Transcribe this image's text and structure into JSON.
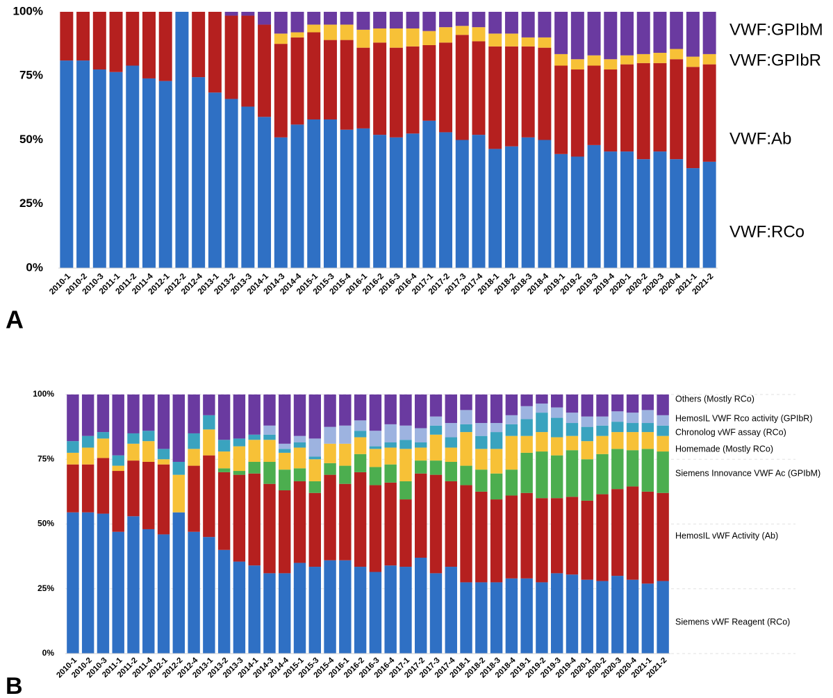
{
  "chart_data": [
    {
      "type": "bar",
      "stacked": true,
      "panel_label": "A",
      "categories": [
        "2010-1",
        "2010-2",
        "2010-3",
        "2011-1",
        "2011-2",
        "2011-4",
        "2012-1",
        "2012-2",
        "2012-4",
        "2013-1",
        "2013-2",
        "2013-3",
        "2014-1",
        "2014-3",
        "2014-4",
        "2015-1",
        "2015-3",
        "2015-4",
        "2016-1",
        "2016-2",
        "2016-3",
        "2016-4",
        "2017-1",
        "2017-2",
        "2017-3",
        "2017-4",
        "2018-1",
        "2018-2",
        "2018-3",
        "2018-4",
        "2019-1",
        "2019-2",
        "2019-3",
        "2019-4",
        "2020-1",
        "2020-2",
        "2020-3",
        "2020-4",
        "2021-1",
        "2021-2"
      ],
      "series": [
        {
          "name": "VWF:RCo",
          "color": "#2f70c4",
          "label_color": "#2f70c4",
          "values": [
            81,
            81,
            77.5,
            76.5,
            79,
            74,
            73,
            100,
            74.5,
            68.5,
            66,
            63,
            59,
            51,
            56,
            58,
            58,
            54,
            54.5,
            52,
            51,
            52.5,
            57.5,
            53,
            50,
            52,
            46.5,
            47.5,
            51,
            50,
            44.5,
            43.5,
            48,
            45.5,
            45.5,
            42.5,
            45.5,
            42.5,
            39,
            41.5
          ]
        },
        {
          "name": "VWF:Ab",
          "color": "#b5201f",
          "label_color": "#b5201f",
          "values": [
            19,
            19,
            22.5,
            23.5,
            21,
            26,
            27,
            0,
            25.5,
            31.5,
            32.5,
            35.5,
            36,
            36.5,
            34,
            34,
            31,
            35,
            31.5,
            36,
            35,
            34,
            29.5,
            35,
            41,
            36.5,
            40,
            39,
            35.5,
            36,
            34.5,
            34,
            31,
            32,
            34,
            37.5,
            34.5,
            39,
            39.5,
            38
          ]
        },
        {
          "name": "VWF:GPIbR",
          "color": "#f7c137",
          "label_color": "#8a6d1e",
          "values": [
            0,
            0,
            0,
            0,
            0,
            0,
            0,
            0,
            0,
            0,
            0,
            0,
            0,
            4,
            2,
            3,
            6,
            6,
            7,
            5.5,
            7.5,
            7,
            5.5,
            6,
            3.5,
            5.5,
            5,
            5,
            3.5,
            4,
            4.5,
            4,
            4,
            4,
            3.5,
            3.5,
            4,
            4,
            4,
            4
          ]
        },
        {
          "name": "VWF:GPIbM",
          "color": "#6a3aa0",
          "label_color": "#6a3aa0",
          "values": [
            0,
            0,
            0,
            0,
            0,
            0,
            0,
            0,
            0,
            0,
            1.5,
            1.5,
            5,
            8.5,
            8,
            5,
            5,
            5,
            7,
            6.5,
            6.5,
            6.5,
            7.5,
            6,
            5.5,
            6,
            8.5,
            8.5,
            10,
            10,
            16.5,
            18.5,
            17,
            18.5,
            17,
            16.5,
            16,
            14.5,
            17.5,
            16.5
          ]
        }
      ],
      "ylim": [
        0,
        100
      ],
      "yticks": [
        {
          "value": 0,
          "label": "0%"
        },
        {
          "value": 25,
          "label": "25%"
        },
        {
          "value": 50,
          "label": "50%"
        },
        {
          "value": 75,
          "label": "75%"
        },
        {
          "value": 100,
          "label": "100%"
        }
      ],
      "grid": false
    },
    {
      "type": "bar",
      "stacked": true,
      "panel_label": "B",
      "categories": [
        "2010-1",
        "2010-2",
        "2010-3",
        "2011-1",
        "2011-2",
        "2011-4",
        "2012-1",
        "2012-2",
        "2012-4",
        "2013-1",
        "2013-2",
        "2013-3",
        "2014-1",
        "2014-3",
        "2014-4",
        "2015-1",
        "2015-3",
        "2015-4",
        "2016-1",
        "2016-2",
        "2016-3",
        "2016-4",
        "2017-1",
        "2017-2",
        "2017-3",
        "2017-4",
        "2018-1",
        "2018-2",
        "2018-3",
        "2018-4",
        "2019-1",
        "2019-2",
        "2019-3",
        "2019-4",
        "2020-1",
        "2020-2",
        "2020-3",
        "2020-4",
        "2021-1",
        "2021-2"
      ],
      "series": [
        {
          "name": "Siemens vWF Reagent (RCo)",
          "color": "#2f70c4",
          "label_color": "#2f70c4",
          "values": [
            54.5,
            54.5,
            54,
            47,
            53,
            48,
            46,
            54.5,
            47,
            45,
            40,
            35.5,
            34,
            31,
            31,
            35,
            33.5,
            36,
            36,
            33.5,
            31.5,
            34,
            33.5,
            37,
            31,
            33.5,
            27.5,
            27.5,
            27.5,
            29,
            29,
            27.5,
            31,
            30.5,
            28.5,
            28,
            30,
            28.5,
            27,
            28
          ]
        },
        {
          "name": "HemosIL vWF Activity (Ab)",
          "color": "#b5201f",
          "label_color": "#b5201f",
          "values": [
            18.5,
            18.5,
            21.5,
            23.5,
            21.5,
            26,
            27,
            0,
            25.5,
            31.5,
            30,
            33.5,
            35.5,
            34.5,
            32,
            31.5,
            28.5,
            33,
            29.5,
            36.5,
            33.5,
            32,
            26,
            32.5,
            38,
            33,
            37.5,
            35,
            32,
            32,
            33,
            32.5,
            29,
            30,
            30.5,
            33.5,
            33.5,
            36,
            35.5,
            34
          ]
        },
        {
          "name": "Siemens Innovance VWF Ac (GPIbM)",
          "color": "#4cae4f",
          "label_color": "#3a9d3a",
          "values": [
            0,
            0,
            0,
            0,
            0,
            0,
            0,
            0,
            0,
            0,
            1.5,
            1.5,
            4.5,
            8.5,
            8,
            5,
            4.5,
            4.5,
            7,
            7,
            7,
            7,
            7,
            5,
            5.5,
            7.5,
            7.5,
            8.5,
            10,
            10,
            15.5,
            18,
            16.5,
            18,
            16,
            15.5,
            15.5,
            14,
            16.5,
            16
          ]
        },
        {
          "name": "Homemade (Mostly RCo)",
          "color": "#f7c137",
          "label_color": "#e8a33a",
          "values": [
            4.5,
            6.5,
            7.5,
            2,
            6.5,
            8,
            2,
            14.5,
            6.5,
            10,
            6.5,
            9.5,
            8.5,
            8.5,
            6.5,
            8,
            8.5,
            7.5,
            8.5,
            6.5,
            7,
            6.5,
            12.5,
            5,
            10,
            5.5,
            13,
            8,
            9.5,
            13,
            6.5,
            7.5,
            7,
            5.5,
            7,
            7,
            6.5,
            7,
            6.5,
            6
          ]
        },
        {
          "name": "Chronolog vWF assay (RCo)",
          "color": "#3aa3bf",
          "label_color": "#3aa3bf",
          "values": [
            4.5,
            4.5,
            2.5,
            4,
            4,
            4,
            4,
            5,
            6,
            5.5,
            4.5,
            3,
            2,
            2,
            1.5,
            2,
            1,
            0,
            0,
            2.5,
            1,
            2,
            3.5,
            2,
            3.5,
            4,
            3,
            5,
            6.5,
            4.5,
            6.5,
            7.5,
            7.5,
            5,
            5.5,
            4,
            4,
            3.5,
            3.5,
            4
          ]
        },
        {
          "name": "HemosIL VWF Rco activity (GPIbR)",
          "color": "#9db3e0",
          "label_color": "#2f4ea0",
          "values": [
            0,
            0,
            0,
            0,
            0,
            0,
            0,
            0,
            0,
            0,
            0,
            0,
            0,
            3.5,
            2,
            2.5,
            7,
            6.5,
            7,
            4,
            6,
            7,
            5.5,
            5.5,
            3.5,
            5.5,
            5.5,
            5,
            3.5,
            3.5,
            5,
            3.5,
            4,
            4,
            4,
            3.5,
            4,
            4,
            5,
            4
          ]
        },
        {
          "name": "Others (Mostly RCo)",
          "color": "#6a3aa0",
          "label_color": "#6a3aa0",
          "values": [
            18,
            16,
            14.5,
            23.5,
            15,
            14,
            21,
            26,
            15,
            8,
            17.5,
            17,
            15.5,
            12,
            19,
            16,
            17,
            12.5,
            12,
            10,
            14,
            11.5,
            12,
            13,
            8.5,
            11,
            6,
            11,
            11,
            8,
            4.5,
            3.5,
            5,
            7,
            8.5,
            8.5,
            6.5,
            7,
            6,
            8
          ]
        }
      ],
      "ylim": [
        0,
        100
      ],
      "yticks": [
        {
          "value": 0,
          "label": "0%"
        },
        {
          "value": 25,
          "label": "25%"
        },
        {
          "value": 50,
          "label": "50%"
        },
        {
          "value": 75,
          "label": "75%"
        },
        {
          "value": 100,
          "label": "100%"
        }
      ],
      "grid": true
    }
  ]
}
